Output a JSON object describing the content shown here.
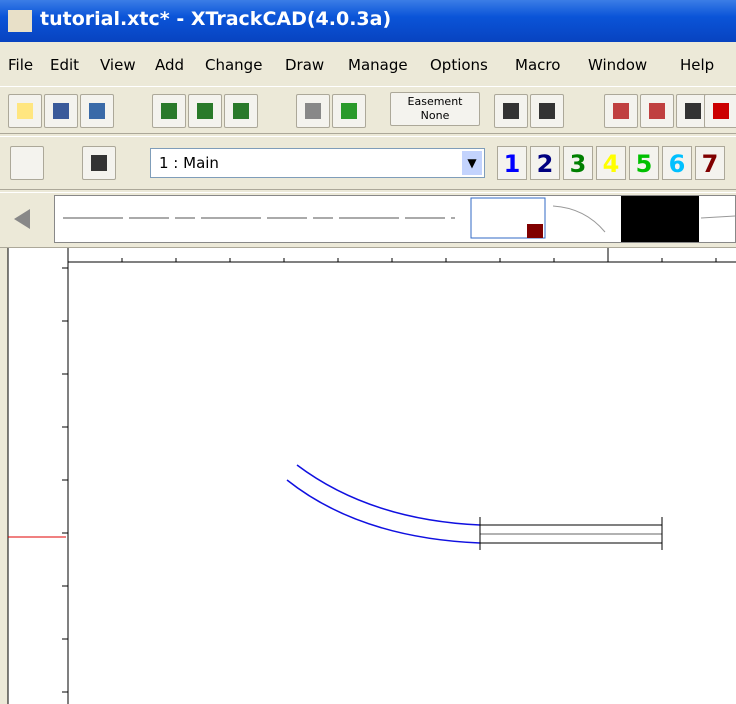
{
  "window": {
    "title": "tutorial.xtc* - XTrackCAD(4.0.3a)"
  },
  "menu": [
    "File",
    "Edit",
    "View",
    "Add",
    "Change",
    "Draw",
    "Manage",
    "Options",
    "Macro",
    "Window",
    "Help"
  ],
  "toolbar": {
    "easement_label": "Easement",
    "easement_value": "None"
  },
  "layer_select": "1 : Main",
  "layers": [
    "1",
    "2",
    "3",
    "4",
    "5",
    "6",
    "7"
  ]
}
